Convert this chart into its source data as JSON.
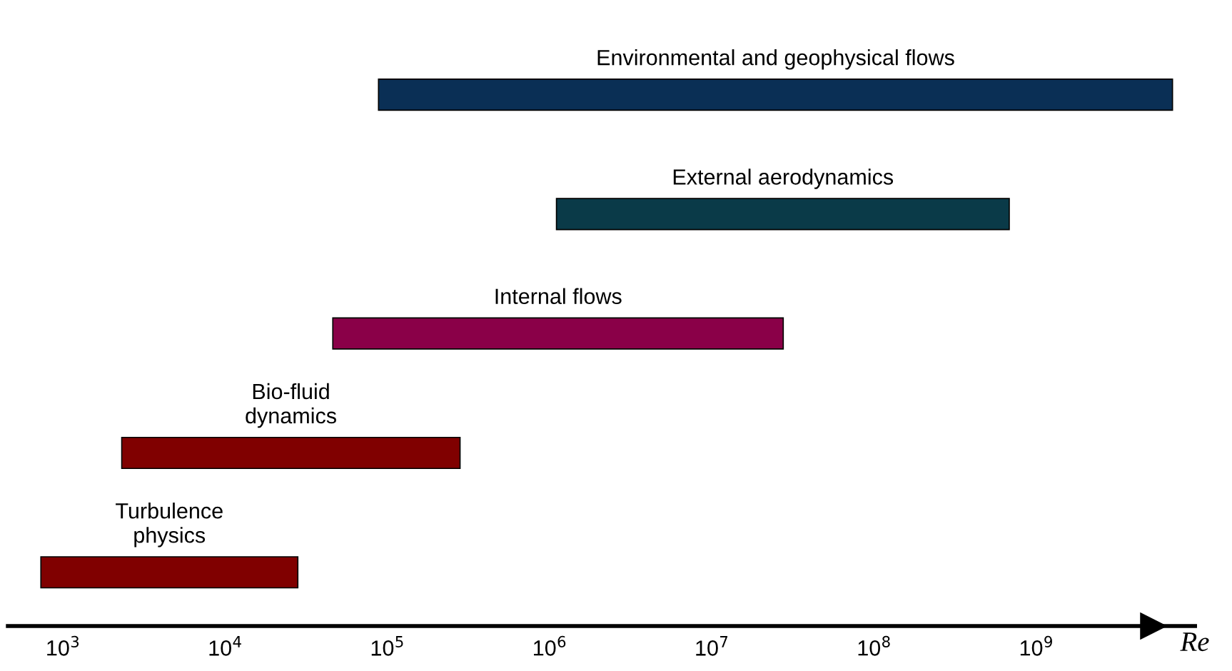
{
  "chart_data": {
    "type": "bar",
    "orientation": "horizontal",
    "log": "x",
    "categories": [
      "Environmental and geophysical flows",
      "External aerodynamics",
      "Internal flows",
      "Bio-fluid\ndynamics",
      "Turbulence\nphysics"
    ],
    "base": [
      88000,
      1100000,
      46000,
      2300,
      730
    ],
    "values": [
      6899912000,
      678900000,
      27454000,
      277700,
      27270
    ],
    "colors": [
      "#0a2f55",
      "#0a3a48",
      "#8a0048",
      "#800000",
      "#800000"
    ],
    "xlabel": "Re",
    "xlim": [
      457,
      9500000000
    ],
    "xticks": [
      {
        "value": 1000,
        "label": "10$^{3}$"
      },
      {
        "value": 10000,
        "label": "10$^{4}$"
      },
      {
        "value": 100000,
        "label": "10$^{5}$"
      },
      {
        "value": 1000000,
        "label": "10$^{6}$"
      },
      {
        "value": 10000000,
        "label": "10$^{7}$"
      },
      {
        "value": 100000000,
        "label": "10$^{8}$"
      },
      {
        "value": 1000000000,
        "label": "10$^{9}$"
      }
    ],
    "grid": false
  }
}
